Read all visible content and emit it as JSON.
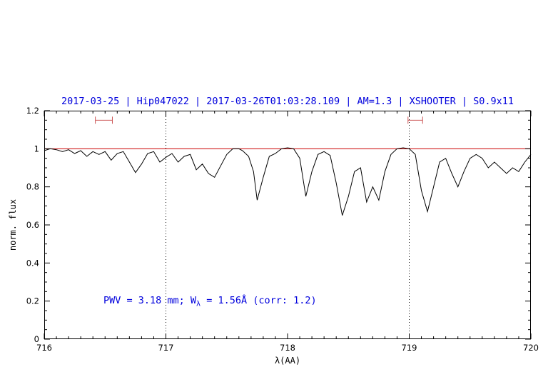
{
  "title": "2017-03-25 | Hip047022 | 2017-03-26T01:03:28.109 | AM=1.3 | XSHOOTER | S0.9x11",
  "annotation": {
    "prefix": "PWV = 3.18 mm; W",
    "subscript": "λ",
    "suffix": " = 1.56Å (corr: 1.2)"
  },
  "colors": {
    "title": "#0000dd",
    "annotation": "#0000dd",
    "spectrum": "#000000",
    "reference_line": "#cc0000",
    "marker": "#cc5555",
    "axis": "#000000"
  },
  "chart_data": {
    "type": "line",
    "title": "2017-03-25 | Hip047022 | 2017-03-26T01:03:28.109 | AM=1.3 | XSHOOTER | S0.9x11",
    "xlabel": "λ(AA)",
    "ylabel": "norm. flux",
    "xlim": [
      716,
      720
    ],
    "ylim": [
      0,
      1.2
    ],
    "grid": false,
    "xticks": [
      716,
      717,
      718,
      719,
      720
    ],
    "xtick_labels": [
      "716",
      "717",
      "718",
      "719",
      "720"
    ],
    "yticks": [
      0,
      0.2,
      0.4,
      0.6,
      0.8,
      1,
      1.2
    ],
    "ytick_labels": [
      "0",
      "0.2",
      "0.4",
      "0.6",
      "0.8",
      "1",
      "1.2"
    ],
    "minor_xtick_step": 0.1,
    "minor_ytick_step": 0.05,
    "dotted_vlines": [
      717,
      719
    ],
    "reference_hline": 1.0,
    "range_markers": [
      {
        "x1": 716.42,
        "x2": 716.56,
        "y": 1.15
      },
      {
        "x1": 718.99,
        "x2": 719.11,
        "y": 1.15
      }
    ],
    "series": [
      {
        "name": "spectrum",
        "points": [
          [
            716.0,
            0.99
          ],
          [
            716.05,
            1.0
          ],
          [
            716.1,
            0.995
          ],
          [
            716.15,
            0.985
          ],
          [
            716.2,
            0.995
          ],
          [
            716.25,
            0.975
          ],
          [
            716.3,
            0.99
          ],
          [
            716.35,
            0.96
          ],
          [
            716.4,
            0.985
          ],
          [
            716.45,
            0.97
          ],
          [
            716.5,
            0.985
          ],
          [
            716.55,
            0.94
          ],
          [
            716.6,
            0.975
          ],
          [
            716.65,
            0.985
          ],
          [
            716.7,
            0.93
          ],
          [
            716.75,
            0.875
          ],
          [
            716.8,
            0.92
          ],
          [
            716.85,
            0.975
          ],
          [
            716.9,
            0.985
          ],
          [
            716.95,
            0.93
          ],
          [
            717.0,
            0.955
          ],
          [
            717.05,
            0.975
          ],
          [
            717.1,
            0.93
          ],
          [
            717.15,
            0.96
          ],
          [
            717.2,
            0.97
          ],
          [
            717.25,
            0.89
          ],
          [
            717.3,
            0.92
          ],
          [
            717.35,
            0.87
          ],
          [
            717.4,
            0.85
          ],
          [
            717.45,
            0.91
          ],
          [
            717.5,
            0.97
          ],
          [
            717.55,
            1.0
          ],
          [
            717.6,
            1.0
          ],
          [
            717.63,
            0.99
          ],
          [
            717.68,
            0.96
          ],
          [
            717.72,
            0.88
          ],
          [
            717.75,
            0.73
          ],
          [
            717.8,
            0.85
          ],
          [
            717.85,
            0.96
          ],
          [
            717.9,
            0.975
          ],
          [
            717.95,
            1.0
          ],
          [
            718.0,
            1.005
          ],
          [
            718.05,
            1.0
          ],
          [
            718.1,
            0.95
          ],
          [
            718.15,
            0.75
          ],
          [
            718.2,
            0.88
          ],
          [
            718.25,
            0.97
          ],
          [
            718.3,
            0.985
          ],
          [
            718.35,
            0.965
          ],
          [
            718.4,
            0.82
          ],
          [
            718.45,
            0.65
          ],
          [
            718.5,
            0.75
          ],
          [
            718.55,
            0.88
          ],
          [
            718.6,
            0.9
          ],
          [
            718.65,
            0.72
          ],
          [
            718.7,
            0.8
          ],
          [
            718.75,
            0.73
          ],
          [
            718.8,
            0.88
          ],
          [
            718.85,
            0.97
          ],
          [
            718.9,
            1.0
          ],
          [
            718.95,
            1.005
          ],
          [
            719.0,
            1.0
          ],
          [
            719.05,
            0.97
          ],
          [
            719.1,
            0.78
          ],
          [
            719.15,
            0.67
          ],
          [
            719.2,
            0.8
          ],
          [
            719.25,
            0.93
          ],
          [
            719.3,
            0.95
          ],
          [
            719.35,
            0.87
          ],
          [
            719.4,
            0.8
          ],
          [
            719.45,
            0.88
          ],
          [
            719.5,
            0.95
          ],
          [
            719.55,
            0.97
          ],
          [
            719.6,
            0.95
          ],
          [
            719.65,
            0.9
          ],
          [
            719.7,
            0.93
          ],
          [
            719.75,
            0.9
          ],
          [
            719.8,
            0.87
          ],
          [
            719.85,
            0.9
          ],
          [
            719.9,
            0.88
          ],
          [
            719.95,
            0.93
          ],
          [
            720.0,
            0.97
          ]
        ]
      }
    ]
  }
}
